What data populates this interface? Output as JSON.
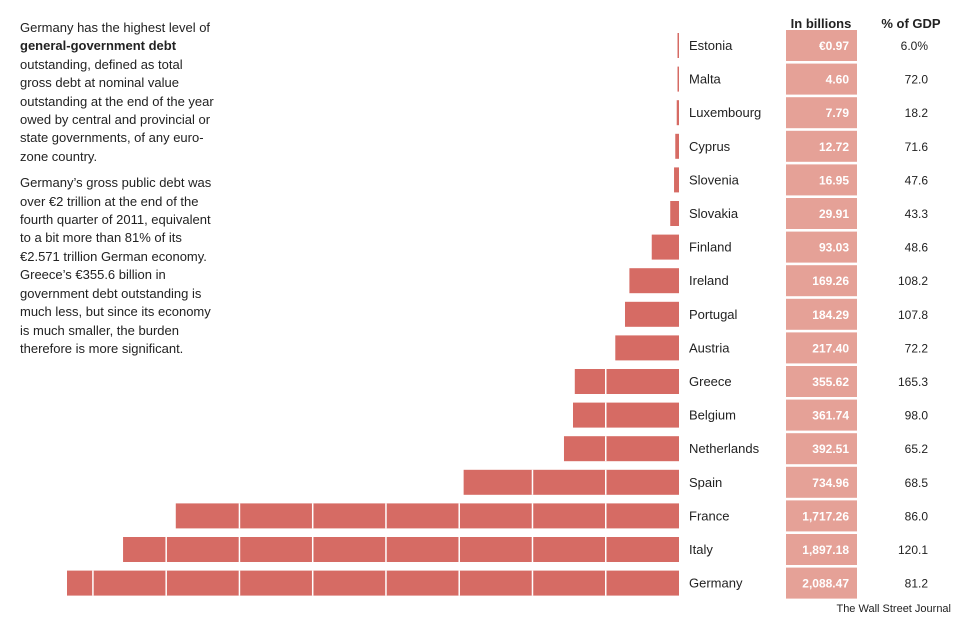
{
  "intro": {
    "p1_a": "Germany has the highest level of ",
    "p1_bold": "general-government debt",
    "p1_b": " outstanding, defined as total gross debt at nominal value outstanding at the end of the year owed by central and provincial or state governments, of any euro-zone country.",
    "p2": "Germany’s gross public debt was over €2 trillion at the end of the fourth quarter of 2011, equivalent to a bit more than 81% of its €2.571 trillion German economy. Greece’s €355.6 billion in government debt outstanding is much less, but since its economy is much smaller, the burden therefore is more significant."
  },
  "source": "The Wall Street Journal",
  "colors": {
    "bar": "#d66b64",
    "value_box": "#e5a197",
    "divider": "#ffffff"
  },
  "chart_data": {
    "type": "bar",
    "orientation": "horizontal",
    "title": "",
    "value_header": "In billions",
    "pct_header": "% of GDP",
    "gridline_step": 250,
    "categories": [
      "Estonia",
      "Malta",
      "Luxembourg",
      "Cyprus",
      "Slovenia",
      "Slovakia",
      "Finland",
      "Ireland",
      "Portugal",
      "Austria",
      "Greece",
      "Belgium",
      "Netherlands",
      "Spain",
      "France",
      "Italy",
      "Germany"
    ],
    "values": [
      0.97,
      4.6,
      7.79,
      12.72,
      16.95,
      29.91,
      93.03,
      169.26,
      184.29,
      217.4,
      355.62,
      361.74,
      392.51,
      734.96,
      1717.26,
      1897.18,
      2088.47
    ],
    "value_labels": [
      "€0.97",
      "4.60",
      "7.79",
      "12.72",
      "16.95",
      "29.91",
      "93.03",
      "169.26",
      "184.29",
      "217.40",
      "355.62",
      "361.74",
      "392.51",
      "734.96",
      "1,717.26",
      "1,897.18",
      "2,088.47"
    ],
    "pct_gdp": [
      "6.0%",
      "72.0",
      "18.2",
      "71.6",
      "47.6",
      "43.3",
      "48.6",
      "108.2",
      "107.8",
      "72.2",
      "165.3",
      "98.0",
      "65.2",
      "68.5",
      "86.0",
      "120.1",
      "81.2"
    ]
  }
}
